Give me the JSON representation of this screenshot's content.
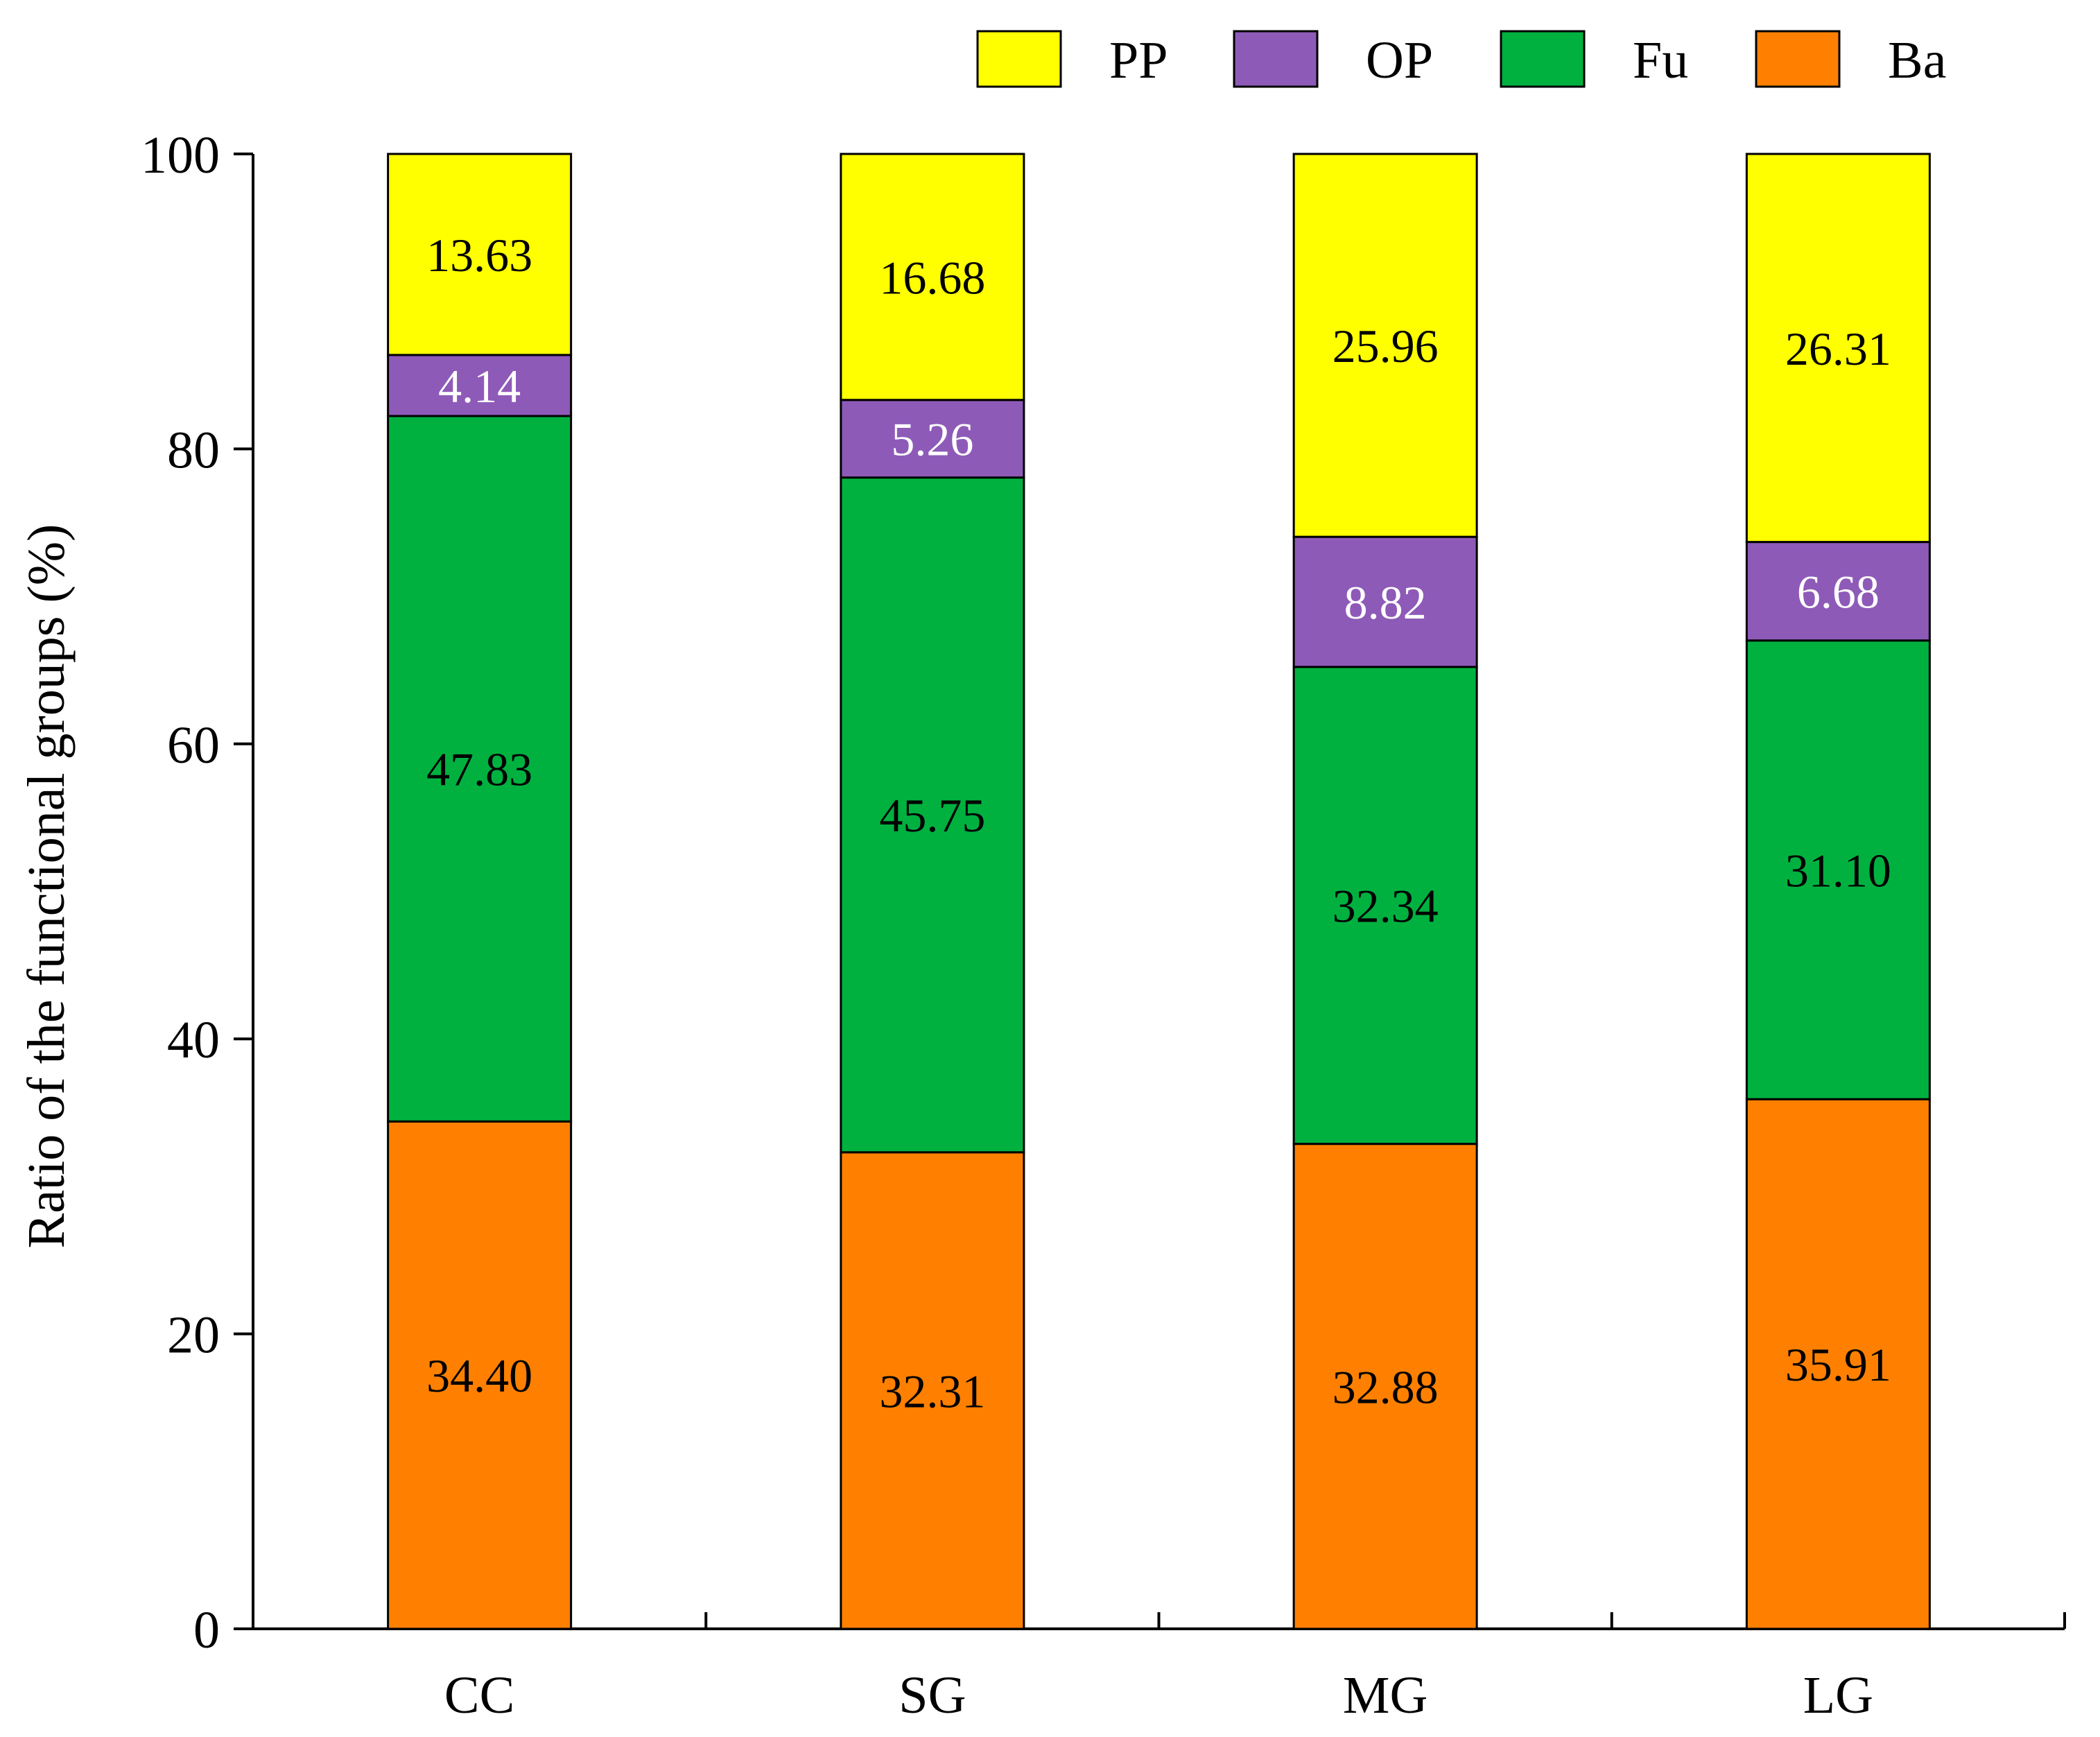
{
  "chart_data": {
    "type": "bar",
    "stacked": true,
    "title": "",
    "xlabel": "",
    "ylabel": "Ratio of the functional groups (%)",
    "ylim": [
      0,
      100
    ],
    "yticks": [
      0,
      20,
      40,
      60,
      80,
      100
    ],
    "categories": [
      "CC",
      "SG",
      "MG",
      "LG"
    ],
    "series": [
      {
        "name": "Ba",
        "color": "#FF8000",
        "label_color": "#000000",
        "values": [
          34.4,
          32.31,
          32.88,
          35.91
        ],
        "labels": [
          "34.40",
          "32.31",
          "32.88",
          "35.91"
        ]
      },
      {
        "name": "Fu",
        "color": "#00B140",
        "label_color": "#000000",
        "values": [
          47.83,
          45.75,
          32.34,
          31.1
        ],
        "labels": [
          "47.83",
          "45.75",
          "32.34",
          "31.10"
        ]
      },
      {
        "name": "OP",
        "color": "#8E5AB8",
        "label_color": "#FFFFFF",
        "values": [
          4.14,
          5.26,
          8.82,
          6.68
        ],
        "labels": [
          "4.14",
          "5.26",
          "8.82",
          "6.68"
        ]
      },
      {
        "name": "PP",
        "color": "#FFFF00",
        "label_color": "#000000",
        "values": [
          13.63,
          16.68,
          25.96,
          26.31
        ],
        "labels": [
          "13.63",
          "16.68",
          "25.96",
          "26.31"
        ]
      }
    ],
    "legend_order": [
      "PP",
      "OP",
      "Fu",
      "Ba"
    ],
    "legend_position": "top-right",
    "grid": false
  }
}
